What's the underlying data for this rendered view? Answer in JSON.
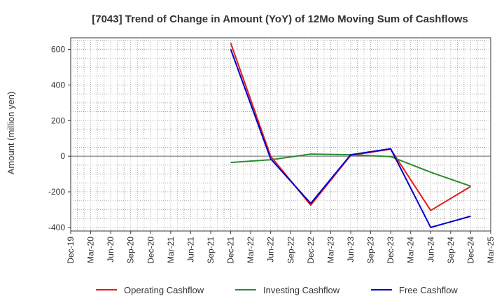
{
  "chart_data": {
    "type": "line",
    "title": "[7043]  Trend of Change in Amount (YoY) of 12Mo Moving Sum of Cashflows",
    "xlabel": "",
    "ylabel": "Amount (million yen)",
    "ylim": [
      -420,
      665
    ],
    "yticks": [
      -400,
      -200,
      0,
      200,
      400,
      600
    ],
    "x": [
      "Dec-19",
      "Mar-20",
      "Jun-20",
      "Sep-20",
      "Dec-20",
      "Mar-21",
      "Jun-21",
      "Sep-21",
      "Dec-21",
      "Mar-22",
      "Jun-22",
      "Sep-22",
      "Dec-22",
      "Mar-23",
      "Jun-23",
      "Sep-23",
      "Dec-23",
      "Mar-24",
      "Jun-24",
      "Sep-24",
      "Dec-24",
      "Mar-25"
    ],
    "grid": true,
    "legend_position": "bottom",
    "series": [
      {
        "name": "Operating Cashflow",
        "color": "#e41a1c",
        "values": [
          null,
          null,
          null,
          null,
          null,
          null,
          null,
          null,
          635,
          null,
          0,
          null,
          -275,
          null,
          5,
          null,
          40,
          null,
          -305,
          null,
          -170,
          null
        ]
      },
      {
        "name": "Investing Cashflow",
        "color": "#2e8b2e",
        "values": [
          null,
          null,
          null,
          null,
          null,
          null,
          null,
          null,
          -35,
          null,
          -20,
          null,
          12,
          null,
          8,
          null,
          -2,
          null,
          -90,
          null,
          -168,
          null
        ]
      },
      {
        "name": "Free Cashflow",
        "color": "#0000cc",
        "values": [
          null,
          null,
          null,
          null,
          null,
          null,
          null,
          null,
          600,
          null,
          -15,
          null,
          -265,
          null,
          8,
          null,
          42,
          null,
          -400,
          null,
          -337,
          null
        ]
      }
    ]
  }
}
